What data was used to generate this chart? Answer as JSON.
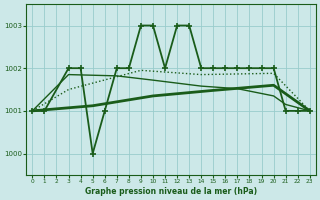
{
  "background_color": "#cce8e8",
  "grid_color": "#99cccc",
  "line_color": "#1a5c1a",
  "title": "Graphe pression niveau de la mer (hPa)",
  "xlim": [
    -0.5,
    23.5
  ],
  "ylim": [
    999.5,
    1003.5
  ],
  "yticks": [
    1000,
    1001,
    1002,
    1003
  ],
  "xticks": [
    0,
    1,
    2,
    3,
    4,
    5,
    6,
    7,
    8,
    9,
    10,
    11,
    12,
    13,
    14,
    15,
    16,
    17,
    18,
    19,
    20,
    21,
    22,
    23
  ],
  "line1_x": [
    0,
    1,
    3,
    4,
    5,
    6,
    7,
    8,
    9,
    10,
    11,
    12,
    13,
    14,
    15,
    16,
    17,
    18,
    19,
    20,
    21,
    22,
    23
  ],
  "line1_y": [
    1001,
    1001,
    1002,
    1002,
    1000,
    1001,
    1002,
    1002,
    1003,
    1003,
    1002,
    1003,
    1003,
    1002,
    1002,
    1002,
    1002,
    1002,
    1002,
    1002,
    1001,
    1001,
    1001
  ],
  "line2_x": [
    0,
    3,
    7,
    10,
    14,
    20,
    21,
    22,
    23
  ],
  "line2_y": [
    1001,
    1001.8,
    1001.85,
    1001.88,
    1001.85,
    1001.75,
    1001.5,
    1001.2,
    1001
  ],
  "line3_x": [
    0,
    5,
    10,
    15,
    20,
    21,
    22,
    23
  ],
  "line3_y": [
    1001,
    1001.15,
    1001.38,
    1001.5,
    1001.65,
    1001.3,
    1001.1,
    1001
  ],
  "line4_x": [
    0,
    3,
    7,
    10,
    14,
    17,
    20,
    21,
    22,
    23
  ],
  "line4_y": [
    1001,
    1002.0,
    1001.85,
    1001.75,
    1001.6,
    1001.5,
    1001.35,
    1001.2,
    1001.05,
    1001
  ]
}
